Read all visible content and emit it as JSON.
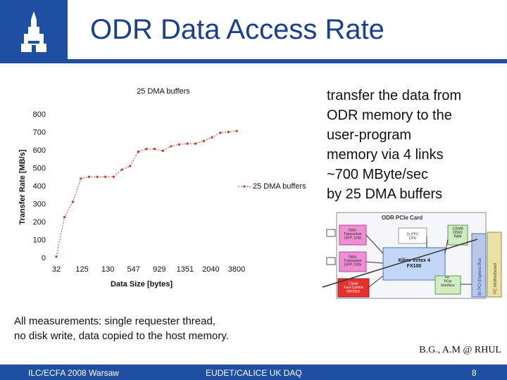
{
  "header": {
    "title": "ODR Data Access Rate"
  },
  "description": {
    "lines": [
      "transfer the data from",
      "ODR memory to the",
      "user-program",
      "memory via 4 links",
      "~700 MByte/sec",
      "by 25 DMA buffers"
    ]
  },
  "footnote": {
    "lines": [
      "All measurements: single requester thread,",
      "no disk write, data copied to the host memory."
    ]
  },
  "credit": "B.G., A.M @ RHUL",
  "footer": {
    "left": "ILC/ECFA 2008 Warsaw",
    "center": "EUDET/CALICE UK DAQ",
    "page": "8"
  },
  "colors": {
    "brand_blue": "#1f4fa0",
    "series_red": "#c0392b"
  },
  "chart_data": {
    "type": "line",
    "title": "25 DMA buffers",
    "xlabel": "Data Size [bytes]",
    "ylabel": "Transfer Rate [MB/s]",
    "ylim": [
      0,
      800
    ],
    "yticks": [
      0,
      100,
      200,
      300,
      400,
      500,
      600,
      700,
      800
    ],
    "xticks": [
      "32",
      "125",
      "130",
      "547",
      "929",
      "1351",
      "2040",
      "3800"
    ],
    "legend_position": "right",
    "grid": false,
    "series": [
      {
        "name": "25 DMA buffers",
        "values": [
          5,
          225,
          310,
          440,
          450,
          450,
          450,
          450,
          490,
          510,
          590,
          605,
          605,
          595,
          620,
          630,
          635,
          635,
          650,
          670,
          695,
          700,
          705
        ]
      }
    ]
  },
  "diagram": {
    "card_title": "ODR PCIe Card",
    "blocks": {
      "opto1": "Opto-\nTransceiver\n(SFP, 1Gb)",
      "opto2": "Opto-\nTransceiver\n(SFP, 1Gb)",
      "clock": "Clock/\nFast Control\ninterface",
      "ppc": "2x PPC\nCPU",
      "fpga": "Xilinx Virtex 4\nFX100",
      "ddr": "125MB\nDDR2\nRAM",
      "pcie": "PCIe\nInterface",
      "bus": "8x PCI Express Bus",
      "mb": "PC Motherboard"
    }
  }
}
